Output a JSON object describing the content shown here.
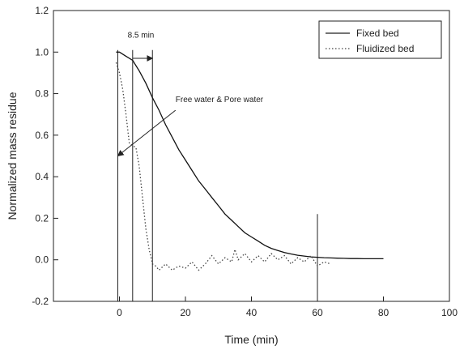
{
  "chart_data": {
    "type": "line",
    "xlabel": "Time (min)",
    "ylabel": "Normalized mass residue",
    "xlim": [
      -20,
      100
    ],
    "ylim": [
      -0.2,
      1.2
    ],
    "xticks": [
      "0",
      "20",
      "40",
      "60",
      "80",
      "100"
    ],
    "yticks": [
      "-0.2",
      "0.0",
      "0.2",
      "0.4",
      "0.6",
      "0.8",
      "1.0",
      "1.2"
    ],
    "grid": false,
    "legend": "top-right",
    "series": [
      {
        "name": "Fixed bed",
        "style": "solid",
        "x": [
          -1,
          0,
          2,
          4,
          6,
          8,
          10,
          12,
          14,
          16,
          18,
          20,
          22,
          24,
          26,
          28,
          30,
          32,
          34,
          36,
          38,
          40,
          42,
          44,
          46,
          48,
          50,
          52,
          54,
          56,
          58,
          60,
          62,
          64,
          66,
          68,
          70,
          72,
          74,
          76,
          78,
          80
        ],
        "y": [
          1.0,
          1.0,
          0.98,
          0.96,
          0.91,
          0.85,
          0.78,
          0.72,
          0.65,
          0.59,
          0.53,
          0.48,
          0.43,
          0.38,
          0.34,
          0.3,
          0.26,
          0.22,
          0.19,
          0.16,
          0.13,
          0.11,
          0.09,
          0.07,
          0.055,
          0.045,
          0.035,
          0.028,
          0.022,
          0.018,
          0.014,
          0.012,
          0.01,
          0.009,
          0.008,
          0.007,
          0.006,
          0.006,
          0.005,
          0.005,
          0.005,
          0.005
        ]
      },
      {
        "name": "Fluidized bed",
        "style": "dotted",
        "x": [
          -1,
          0,
          1,
          2,
          3,
          4,
          5,
          6,
          7,
          8,
          9,
          10,
          11,
          12,
          14,
          16,
          18,
          20,
          22,
          24,
          26,
          28,
          30,
          32,
          34,
          35,
          36,
          38,
          40,
          42,
          44,
          46,
          48,
          50,
          52,
          54,
          56,
          58,
          60,
          62,
          64
        ],
        "y": [
          0.95,
          0.9,
          0.82,
          0.7,
          0.56,
          0.55,
          0.54,
          0.45,
          0.3,
          0.15,
          0.05,
          -0.02,
          -0.03,
          -0.05,
          -0.02,
          -0.05,
          -0.03,
          -0.04,
          -0.01,
          -0.05,
          -0.02,
          0.02,
          -0.02,
          0.01,
          -0.01,
          0.05,
          0.0,
          0.03,
          -0.01,
          0.02,
          -0.01,
          0.03,
          0.0,
          0.02,
          -0.02,
          0.01,
          -0.01,
          0.02,
          -0.03,
          -0.01,
          -0.02
        ]
      }
    ],
    "annotations": [
      {
        "text": "8.5 min",
        "type": "dimension"
      },
      {
        "text": "Free water & Pore water",
        "type": "arrow-label"
      }
    ],
    "reference_lines_x": [
      -0.5,
      4,
      10,
      60
    ]
  }
}
